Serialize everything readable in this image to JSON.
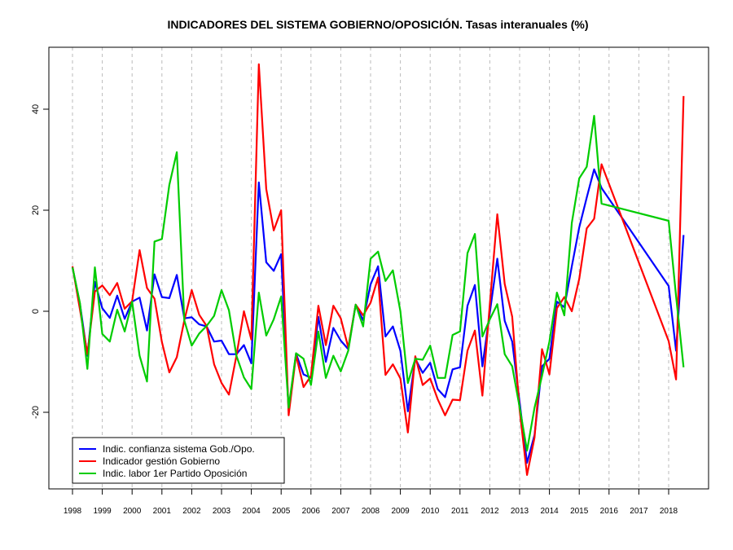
{
  "chart_data": {
    "type": "line",
    "title": "INDICADORES DEL SISTEMA GOBIERNO/OPOSICIÓN. Tasas interanuales (%)",
    "xlabel": "",
    "ylabel": "",
    "xlim": [
      1997.2,
      2019.3
    ],
    "ylim": [
      -35,
      52
    ],
    "grid": "vertical dashed at each year",
    "legend_position": "bottom-left",
    "x_ticks": [
      "1998",
      "1999",
      "2000",
      "2001",
      "2002",
      "2003",
      "2004",
      "2005",
      "2006",
      "2007",
      "2008",
      "2009",
      "2010",
      "2011",
      "2012",
      "2013",
      "2014",
      "2015",
      "2016",
      "2017",
      "2018"
    ],
    "y_ticks": [
      "-20",
      "0",
      "20",
      "40"
    ],
    "x": [
      1998,
      1998.25,
      1998.5,
      1998.75,
      1999,
      1999.25,
      1999.5,
      1999.75,
      2000,
      2000.25,
      2000.5,
      2000.75,
      2001,
      2001.25,
      2001.5,
      2001.75,
      2002,
      2002.25,
      2002.5,
      2002.75,
      2003,
      2003.25,
      2003.5,
      2003.75,
      2004,
      2004.25,
      2004.5,
      2004.75,
      2005,
      2005.25,
      2005.5,
      2005.75,
      2006,
      2006.25,
      2006.5,
      2006.75,
      2007,
      2007.25,
      2007.5,
      2007.75,
      2008,
      2008.25,
      2008.5,
      2008.75,
      2009,
      2009.25,
      2009.5,
      2009.75,
      2010,
      2010.25,
      2010.5,
      2010.75,
      2011,
      2011.25,
      2011.5,
      2011.75,
      2012,
      2012.25,
      2012.5,
      2012.75,
      2013,
      2013.25,
      2013.5,
      2013.75,
      2014,
      2014.25,
      2014.5,
      2014.75,
      2015,
      2015.25,
      2015.5,
      2015.75,
      2018,
      2018.25,
      2018.5
    ],
    "series": [
      {
        "name": "Indic. confianza sistema Gob./Opo.",
        "color": "#0000ff",
        "values": [
          8.7,
          1.4,
          -8.8,
          5.8,
          0.6,
          -1.3,
          3.1,
          -1.5,
          1.9,
          2.7,
          -3.8,
          7.3,
          2.8,
          2.6,
          7.2,
          -1.4,
          -1.2,
          -2.6,
          -3.0,
          -6.0,
          -5.8,
          -8.5,
          -8.5,
          -6.7,
          -10.3,
          25.5,
          9.7,
          8.0,
          11.3,
          -19.7,
          -8.4,
          -12.5,
          -13.2,
          -1.1,
          -10.0,
          -3.3,
          -5.8,
          -7.5,
          1.3,
          -1.8,
          5.3,
          8.9,
          -5.0,
          -3.0,
          -7.8,
          -19.8,
          -9.4,
          -12.2,
          -10.2,
          -15.4,
          -17.0,
          -11.5,
          -11.1,
          1.1,
          5.2,
          -10.9,
          -0.3,
          10.4,
          -1.9,
          -6.0,
          -18.0,
          -30.0,
          -24.5,
          -10.9,
          -9.4,
          1.9,
          0.8,
          8.9,
          16.6,
          22.5,
          28.1,
          24.4,
          5.0,
          -7.8,
          15.1
        ]
      },
      {
        "name": "Indicador gestión Gobierno",
        "color": "#ff0000",
        "values": [
          8.9,
          0.3,
          -8.5,
          3.9,
          5.1,
          3.2,
          5.6,
          0.5,
          2.0,
          12.1,
          4.6,
          2.5,
          -6.1,
          -12.1,
          -9.1,
          -1.8,
          4.2,
          -0.7,
          -2.9,
          -10.5,
          -14.2,
          -16.5,
          -8.8,
          0.0,
          -5.6,
          48.9,
          24.2,
          16.0,
          20.0,
          -20.6,
          -8.7,
          -15.0,
          -12.8,
          1.1,
          -6.7,
          1.1,
          -1.4,
          -7.2,
          1.3,
          -0.8,
          1.7,
          6.7,
          -12.6,
          -10.5,
          -13.3,
          -24.0,
          -8.9,
          -14.6,
          -13.3,
          -17.4,
          -20.6,
          -17.5,
          -17.6,
          -7.8,
          -3.8,
          -16.7,
          1.3,
          19.2,
          5.4,
          -1.1,
          -19.5,
          -32.4,
          -25.0,
          -7.5,
          -12.5,
          0.6,
          2.8,
          0.0,
          6.4,
          16.4,
          18.3,
          29.1,
          -5.9,
          -13.5,
          42.6
        ]
      },
      {
        "name": "Indic. labor 1er Partido Oposición",
        "color": "#00cc00",
        "values": [
          8.7,
          1.6,
          -11.4,
          8.7,
          -4.5,
          -6.0,
          0.3,
          -4.0,
          1.9,
          -8.8,
          -13.9,
          13.8,
          14.3,
          25.0,
          31.5,
          -1.8,
          -6.8,
          -4.4,
          -2.9,
          -0.9,
          4.2,
          0.2,
          -8.8,
          -13.1,
          -15.4,
          3.7,
          -4.8,
          -1.6,
          2.9,
          -19.1,
          -8.3,
          -9.4,
          -14.6,
          -4.0,
          -13.2,
          -8.8,
          -11.9,
          -7.8,
          1.3,
          -3.0,
          10.4,
          11.8,
          6.0,
          8.1,
          0.0,
          -14.2,
          -9.4,
          -9.6,
          -6.8,
          -13.2,
          -13.2,
          -4.7,
          -4.0,
          11.5,
          15.3,
          -5.0,
          -1.6,
          1.4,
          -8.5,
          -10.9,
          -19.0,
          -27.6,
          -19.1,
          -12.8,
          -6.0,
          3.7,
          -0.8,
          17.5,
          26.3,
          28.6,
          38.7,
          21.3,
          17.9,
          3.0,
          -11.1
        ]
      }
    ]
  }
}
